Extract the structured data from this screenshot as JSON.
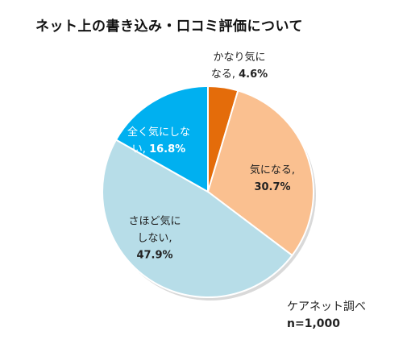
{
  "chart_data": {
    "type": "pie",
    "title": "ネット上の書き込み・口コミ評価について",
    "slices": [
      {
        "label": "かなり気になる",
        "label_line1": "かなり気に",
        "label_line2": "なる,",
        "value": 4.6,
        "value_text": "4.6%",
        "color": "#e46c0a",
        "text_color": "#222222"
      },
      {
        "label": "気になる",
        "label_line1": "気になる,",
        "label_line2": "",
        "value": 30.7,
        "value_text": "30.7%",
        "color": "#fac090",
        "text_color": "#222222"
      },
      {
        "label": "さほど気にしない",
        "label_line1": "さほど気に",
        "label_line2": "しない,",
        "value": 47.9,
        "value_text": "47.9%",
        "color": "#b7dde8",
        "text_color": "#222222"
      },
      {
        "label": "全く気にしない",
        "label_line1": "全く気にしな",
        "label_line2": "い,",
        "value": 16.8,
        "value_text": "16.8%",
        "color": "#00b0f0",
        "text_color": "#ffffff"
      }
    ]
  },
  "source": {
    "line1": "ケアネット調べ",
    "line2": "n=1,000"
  }
}
